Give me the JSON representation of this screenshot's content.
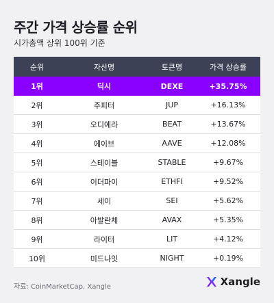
{
  "header": {
    "title": "주간 가격 상승률 순위",
    "subtitle": "시가총액 상위 100위 기준"
  },
  "table": {
    "columns": [
      "순위",
      "자산명",
      "토큰명",
      "가격 상승률"
    ],
    "rows": [
      [
        "1위",
        "딕시",
        "DEXE",
        "+35.75%"
      ],
      [
        "2위",
        "주피터",
        "JUP",
        "+16.13%"
      ],
      [
        "3위",
        "오디에라",
        "BEAT",
        "+13.67%"
      ],
      [
        "4위",
        "에이브",
        "AAVE",
        "+12.08%"
      ],
      [
        "5위",
        "스테이블",
        "STABLE",
        "+9.67%"
      ],
      [
        "6위",
        "이더파이",
        "ETHFI",
        "+9.52%"
      ],
      [
        "7위",
        "세이",
        "SEI",
        "+5.62%"
      ],
      [
        "8위",
        "아발란체",
        "AVAX",
        "+5.35%"
      ],
      [
        "9위",
        "라이터",
        "LIT",
        "+4.12%"
      ],
      [
        "10위",
        "미드나잇",
        "NIGHT",
        "+0.19%"
      ]
    ]
  },
  "footer": {
    "source": "자료: CoinMarketCap, Xangle",
    "logo": "Xangle"
  }
}
